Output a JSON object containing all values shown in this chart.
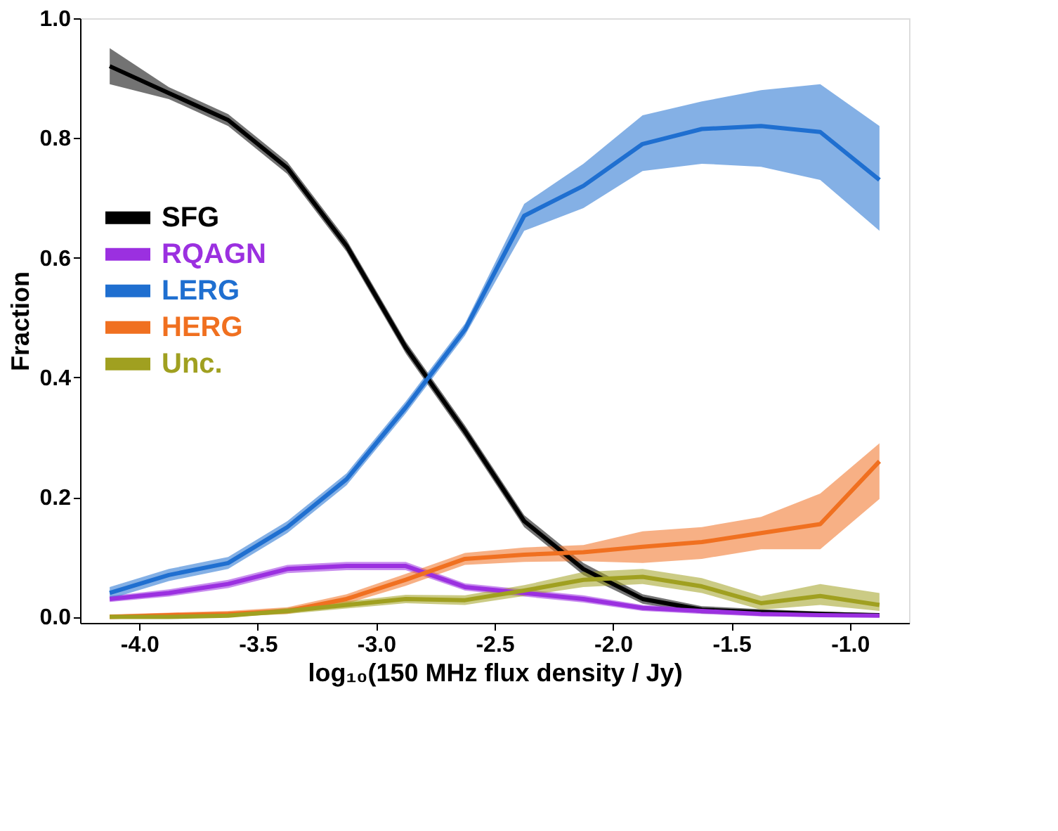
{
  "chart_data": {
    "type": "line",
    "xlabel": "log₁₀(150 MHz flux density / Jy)",
    "ylabel": "Fraction",
    "x": [
      -4.125,
      -3.875,
      -3.625,
      -3.375,
      -3.125,
      -2.875,
      -2.625,
      -2.375,
      -2.125,
      -1.875,
      -1.625,
      -1.375,
      -1.125,
      -0.875
    ],
    "xlim": [
      -4.25,
      -0.75
    ],
    "xticks": [
      {
        "value": -4.0,
        "label": "-4.0"
      },
      {
        "value": -3.5,
        "label": "-3.5"
      },
      {
        "value": -3.0,
        "label": "-3.0"
      },
      {
        "value": -2.5,
        "label": "-2.5"
      },
      {
        "value": -2.0,
        "label": "-2.0"
      },
      {
        "value": -1.5,
        "label": "-1.5"
      },
      {
        "value": -1.0,
        "label": "-1.0"
      }
    ],
    "ylim": [
      -0.01,
      1.0
    ],
    "yticks": [
      {
        "value": 0,
        "label": "0.0"
      },
      {
        "value": 0.2,
        "label": "0.2"
      },
      {
        "value": 0.4,
        "label": "0.4"
      },
      {
        "value": 0.6,
        "label": "0.6"
      },
      {
        "value": 0.8,
        "label": "0.8"
      },
      {
        "value": 1.0,
        "label": "1.0"
      }
    ],
    "grid": false,
    "legend": "left",
    "line_style": "solid",
    "series": [
      {
        "name": "SFG",
        "color": "#000000",
        "values": [
          0.92,
          0.875,
          0.83,
          0.75,
          0.62,
          0.45,
          0.31,
          0.16,
          0.08,
          0.03,
          0.012,
          0.008,
          0.005,
          0.003
        ],
        "lower": [
          0.89,
          0.865,
          0.82,
          0.74,
          0.61,
          0.44,
          0.3,
          0.15,
          0.07,
          0.022,
          0.006,
          0.003,
          0.001,
          0.0
        ],
        "upper": [
          0.95,
          0.885,
          0.84,
          0.76,
          0.63,
          0.46,
          0.32,
          0.17,
          0.09,
          0.038,
          0.018,
          0.013,
          0.009,
          0.006
        ]
      },
      {
        "name": "RQAGN",
        "color": "#9b30e0",
        "values": [
          0.03,
          0.04,
          0.055,
          0.08,
          0.085,
          0.085,
          0.05,
          0.04,
          0.03,
          0.015,
          0.01,
          0.005,
          0.003,
          0.002
        ],
        "lower": [
          0.025,
          0.034,
          0.048,
          0.073,
          0.078,
          0.078,
          0.044,
          0.034,
          0.024,
          0.01,
          0.005,
          0.001,
          0.0,
          0.0
        ],
        "upper": [
          0.035,
          0.046,
          0.062,
          0.087,
          0.092,
          0.092,
          0.056,
          0.046,
          0.036,
          0.02,
          0.015,
          0.009,
          0.007,
          0.006
        ]
      },
      {
        "name": "LERG",
        "color": "#1f6fd0",
        "values": [
          0.04,
          0.07,
          0.09,
          0.15,
          0.23,
          0.35,
          0.48,
          0.67,
          0.72,
          0.79,
          0.815,
          0.82,
          0.81,
          0.73
        ],
        "lower": [
          0.03,
          0.06,
          0.08,
          0.14,
          0.22,
          0.34,
          0.47,
          0.645,
          0.683,
          0.745,
          0.757,
          0.752,
          0.73,
          0.645
        ],
        "upper": [
          0.05,
          0.08,
          0.1,
          0.16,
          0.24,
          0.36,
          0.49,
          0.69,
          0.757,
          0.838,
          0.861,
          0.88,
          0.89,
          0.82
        ]
      },
      {
        "name": "HERG",
        "color": "#f07020",
        "values": [
          0.0,
          0.003,
          0.005,
          0.01,
          0.03,
          0.062,
          0.097,
          0.104,
          0.108,
          0.117,
          0.125,
          0.14,
          0.155,
          0.26
        ],
        "lower": [
          0.0,
          0.0,
          0.001,
          0.005,
          0.022,
          0.052,
          0.087,
          0.092,
          0.093,
          0.09,
          0.097,
          0.113,
          0.113,
          0.197
        ],
        "upper": [
          0.004,
          0.007,
          0.01,
          0.016,
          0.038,
          0.072,
          0.107,
          0.116,
          0.12,
          0.143,
          0.15,
          0.167,
          0.206,
          0.29
        ]
      },
      {
        "name": "Unc.",
        "color": "#a0a020",
        "values": [
          0.0,
          0.0,
          0.002,
          0.01,
          0.02,
          0.03,
          0.028,
          0.044,
          0.062,
          0.067,
          0.051,
          0.023,
          0.035,
          0.02
        ],
        "lower": [
          0.0,
          0.0,
          0.0,
          0.005,
          0.014,
          0.023,
          0.02,
          0.035,
          0.05,
          0.055,
          0.04,
          0.012,
          0.02,
          0.01
        ],
        "upper": [
          0.004,
          0.004,
          0.006,
          0.015,
          0.026,
          0.037,
          0.036,
          0.053,
          0.075,
          0.08,
          0.065,
          0.035,
          0.055,
          0.04
        ]
      }
    ]
  }
}
